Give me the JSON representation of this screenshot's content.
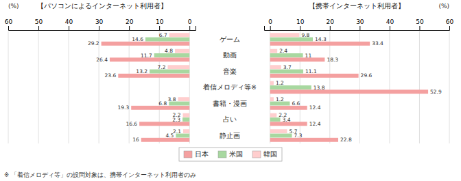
{
  "chart_data": [
    {
      "type": "bar",
      "orientation": "horizontal",
      "title": "【パソコンによるインターネット利用者】",
      "xlabel": "(%)",
      "categories": [
        "ゲーム",
        "動画",
        "音楽",
        "着信メロディ等※",
        "書籍・漫画",
        "占い",
        "静止画"
      ],
      "series": [
        {
          "name": "日本",
          "color": "#F4A0A0",
          "values": [
            29.2,
            26.4,
            23.6,
            null,
            19.3,
            16.6,
            16.0
          ]
        },
        {
          "name": "米国",
          "color": "#A8D8A0",
          "values": [
            14.6,
            11.7,
            13.2,
            null,
            6.8,
            2.3,
            4.5
          ]
        },
        {
          "name": "韓国",
          "color": "#FFCECE",
          "values": [
            6.7,
            4.8,
            7.2,
            null,
            3.8,
            2.2,
            2.1
          ]
        }
      ],
      "xlim": [
        60,
        -2
      ],
      "xticks": [
        60,
        50,
        40,
        30,
        20,
        10,
        0
      ],
      "grid": true,
      "data_labels": true,
      "legend": "bottom",
      "annotations": [
        "※ 「着信メロディ等」の設問対象は、携帯インターネット利用者のみ"
      ]
    },
    {
      "type": "bar",
      "orientation": "horizontal",
      "title": "【携帯インターネット利用者】",
      "xlabel": "(%)",
      "categories": [
        "ゲーム",
        "動画",
        "音楽",
        "着信メロディ等※",
        "書籍・漫画",
        "占い",
        "静止画"
      ],
      "series": [
        {
          "name": "日本",
          "color": "#F4A0A0",
          "values": [
            33.4,
            18.3,
            29.6,
            52.9,
            12.4,
            12.4,
            22.8
          ]
        },
        {
          "name": "米国",
          "color": "#A8D8A0",
          "values": [
            14.3,
            11.0,
            11.1,
            13.8,
            6.6,
            3.4,
            7.3
          ]
        },
        {
          "name": "韓国",
          "color": "#FFCECE",
          "values": [
            9.8,
            2.4,
            3.7,
            1.2,
            1.2,
            2.2,
            5.7
          ]
        }
      ],
      "xlim": [
        -2,
        60
      ],
      "xticks": [
        0,
        10,
        20,
        30,
        40,
        50,
        60
      ],
      "grid": true,
      "data_labels": true
    }
  ]
}
